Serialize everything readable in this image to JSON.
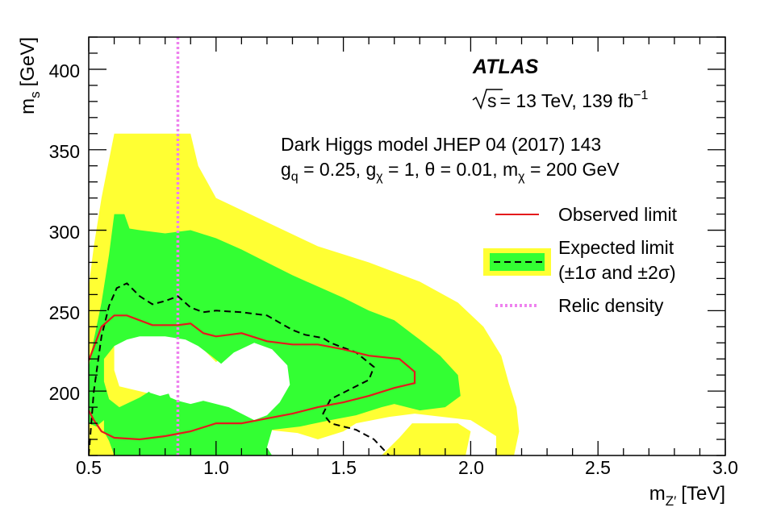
{
  "chart_data": {
    "type": "area",
    "x_axis": {
      "label_main": "m",
      "label_sub": "Z′",
      "label_unit": "[TeV]",
      "range": [
        0.5,
        3.0
      ],
      "ticks": [
        "0.5",
        "1.0",
        "1.5",
        "2.0",
        "2.5",
        "3.0"
      ],
      "tick_values": [
        0.5,
        1.0,
        1.5,
        2.0,
        2.5,
        3.0
      ]
    },
    "y_axis": {
      "label_main": "m",
      "label_sub": "s",
      "label_unit": "[GeV]",
      "range": [
        160,
        420
      ],
      "ticks": [
        "200",
        "250",
        "300",
        "350",
        "400"
      ],
      "tick_values": [
        200,
        250,
        300,
        350,
        400
      ]
    },
    "annotations": {
      "experiment": "ATLAS",
      "energy_sqrt": "s",
      "energy_text": "= 13 TeV, 139 fb",
      "energy_exp": "−1",
      "model_line": "Dark Higgs model JHEP 04 (2017) 143",
      "params_gq": "g",
      "params_gq_sub": "q",
      "params_gq_val": " = 0.25, g",
      "params_gchi_sub": "χ",
      "params_gchi_val": " = 1, θ = 0.01, m",
      "params_mchi_sub": "χ",
      "params_mchi_val": " = 200 GeV"
    },
    "legend": {
      "placement": "right",
      "observed": "Observed limit",
      "expected_line1": "Expected limit",
      "expected_line2": "(±1σ and ±2σ)",
      "relic": "Relic density"
    },
    "colors": {
      "observed": "#e41a1c",
      "band_1sigma": "#33ff33",
      "band_2sigma": "#ffff33",
      "expected": "#000000",
      "relic": "#ee82ee"
    },
    "relic_density_x": 0.85,
    "series": {
      "band_2sigma_outer": [
        [
          0.5,
          160
        ],
        [
          0.5,
          265
        ],
        [
          0.52,
          290
        ],
        [
          0.55,
          320
        ],
        [
          0.6,
          360
        ],
        [
          0.9,
          360
        ],
        [
          0.93,
          340
        ],
        [
          1.0,
          320
        ],
        [
          1.2,
          305
        ],
        [
          1.4,
          290
        ],
        [
          1.6,
          280
        ],
        [
          1.8,
          268
        ],
        [
          1.95,
          255
        ],
        [
          2.05,
          240
        ],
        [
          2.12,
          222
        ],
        [
          2.15,
          205
        ],
        [
          2.18,
          190
        ],
        [
          2.19,
          175
        ],
        [
          2.17,
          160
        ]
      ],
      "band_2sigma_hole_a": [
        [
          0.62,
          203
        ],
        [
          0.6,
          213
        ],
        [
          0.6,
          228
        ],
        [
          0.62,
          234
        ],
        [
          0.7,
          236
        ],
        [
          0.77,
          240
        ],
        [
          0.85,
          238
        ],
        [
          0.95,
          226
        ],
        [
          1.0,
          218
        ],
        [
          1.08,
          229
        ],
        [
          1.15,
          232
        ],
        [
          1.25,
          228
        ],
        [
          1.32,
          218
        ],
        [
          1.33,
          205
        ],
        [
          1.29,
          192
        ],
        [
          1.23,
          184
        ],
        [
          1.15,
          180
        ],
        [
          1.08,
          186
        ],
        [
          1.0,
          186
        ],
        [
          0.9,
          191
        ],
        [
          0.82,
          192
        ],
        [
          0.75,
          198
        ],
        [
          0.7,
          200
        ]
      ],
      "band_2sigma_hole_b": [
        [
          1.2,
          176
        ],
        [
          1.18,
          164
        ],
        [
          1.22,
          160
        ],
        [
          1.65,
          160
        ],
        [
          1.72,
          171
        ],
        [
          1.77,
          180
        ],
        [
          1.95,
          180
        ],
        [
          2.0,
          175
        ],
        [
          1.98,
          160
        ],
        [
          2.1,
          160
        ],
        [
          2.1,
          172
        ],
        [
          2.0,
          182
        ],
        [
          1.78,
          186
        ],
        [
          1.68,
          184
        ],
        [
          1.55,
          180
        ],
        [
          1.5,
          175
        ],
        [
          1.4,
          170
        ],
        [
          1.32,
          174
        ]
      ],
      "band_1sigma_outer": [
        [
          0.5,
          160
        ],
        [
          0.5,
          215
        ],
        [
          0.52,
          232
        ],
        [
          0.55,
          255
        ],
        [
          0.58,
          285
        ],
        [
          0.6,
          310
        ],
        [
          0.64,
          310
        ],
        [
          0.66,
          301
        ],
        [
          0.7,
          300
        ],
        [
          0.8,
          298
        ],
        [
          0.9,
          300
        ],
        [
          1.0,
          295
        ],
        [
          1.1,
          288
        ],
        [
          1.2,
          280
        ],
        [
          1.3,
          272
        ],
        [
          1.4,
          265
        ],
        [
          1.5,
          258
        ],
        [
          1.6,
          250
        ],
        [
          1.7,
          244
        ],
        [
          1.8,
          232
        ],
        [
          1.88,
          222
        ],
        [
          1.95,
          210
        ],
        [
          1.96,
          197
        ],
        [
          1.9,
          190
        ],
        [
          1.8,
          188
        ],
        [
          1.7,
          192
        ],
        [
          1.65,
          190
        ],
        [
          1.55,
          185
        ],
        [
          1.45,
          182
        ],
        [
          1.33,
          178
        ],
        [
          1.22,
          176
        ],
        [
          1.2,
          165
        ],
        [
          1.22,
          160
        ]
      ],
      "band_1sigma_hole_a": [
        [
          0.58,
          195
        ],
        [
          0.56,
          206
        ],
        [
          0.56,
          220
        ],
        [
          0.6,
          228
        ],
        [
          0.65,
          232
        ],
        [
          0.7,
          234
        ],
        [
          0.8,
          234
        ],
        [
          0.88,
          232
        ],
        [
          0.93,
          228
        ],
        [
          0.98,
          222
        ],
        [
          1.02,
          217
        ],
        [
          1.07,
          224
        ],
        [
          1.15,
          230
        ],
        [
          1.22,
          226
        ],
        [
          1.28,
          216
        ],
        [
          1.29,
          204
        ],
        [
          1.25,
          193
        ],
        [
          1.2,
          185
        ],
        [
          1.15,
          182
        ],
        [
          1.1,
          186
        ],
        [
          1.05,
          190
        ],
        [
          1.0,
          192
        ],
        [
          0.95,
          194
        ],
        [
          0.9,
          192
        ],
        [
          0.85,
          194
        ],
        [
          0.82,
          196
        ],
        [
          0.8,
          204
        ],
        [
          0.78,
          208
        ],
        [
          0.74,
          200
        ],
        [
          0.7,
          196
        ],
        [
          0.62,
          190
        ]
      ],
      "band_1sigma_hole_b": [
        [
          0.5,
          160
        ],
        [
          0.5,
          180
        ],
        [
          0.53,
          178
        ],
        [
          0.56,
          182
        ],
        [
          0.56,
          175
        ],
        [
          0.58,
          169
        ],
        [
          0.6,
          160
        ]
      ],
      "white_region_a": [
        [
          0.62,
          209
        ],
        [
          0.62,
          215
        ],
        [
          0.63,
          219
        ],
        [
          0.65,
          219
        ],
        [
          0.68,
          214
        ],
        [
          0.68,
          209
        ],
        [
          0.65,
          205
        ],
        [
          0.63,
          206
        ]
      ],
      "white_region_b": [
        [
          0.72,
          205
        ],
        [
          0.74,
          214
        ],
        [
          0.78,
          219
        ],
        [
          0.84,
          219
        ],
        [
          0.88,
          219
        ],
        [
          0.9,
          214
        ],
        [
          0.89,
          206
        ],
        [
          0.85,
          200
        ],
        [
          0.78,
          197
        ],
        [
          0.74,
          199
        ]
      ],
      "observed": [
        [
          0.5,
          188
        ],
        [
          0.52,
          182
        ],
        [
          0.55,
          175
        ],
        [
          0.6,
          171
        ],
        [
          0.7,
          170
        ],
        [
          0.8,
          172
        ],
        [
          0.9,
          175
        ],
        [
          1.0,
          180
        ],
        [
          1.05,
          180
        ],
        [
          1.1,
          180
        ],
        [
          1.2,
          183
        ],
        [
          1.3,
          186
        ],
        [
          1.4,
          190
        ],
        [
          1.5,
          193
        ],
        [
          1.6,
          197
        ],
        [
          1.7,
          202
        ],
        [
          1.78,
          205
        ],
        [
          1.78,
          212
        ],
        [
          1.72,
          220
        ],
        [
          1.6,
          222
        ],
        [
          1.5,
          226
        ],
        [
          1.4,
          229
        ],
        [
          1.3,
          229
        ],
        [
          1.2,
          231
        ],
        [
          1.1,
          236
        ],
        [
          1.05,
          235
        ],
        [
          1.0,
          234
        ],
        [
          0.95,
          236
        ],
        [
          0.9,
          242
        ],
        [
          0.85,
          241
        ],
        [
          0.8,
          241
        ],
        [
          0.75,
          241
        ],
        [
          0.7,
          244
        ],
        [
          0.65,
          247
        ],
        [
          0.6,
          247
        ],
        [
          0.55,
          240
        ],
        [
          0.5,
          219
        ]
      ],
      "expected": [
        [
          0.5,
          160
        ],
        [
          0.52,
          200
        ],
        [
          0.55,
          234
        ],
        [
          0.58,
          253
        ],
        [
          0.61,
          264
        ],
        [
          0.65,
          267
        ],
        [
          0.7,
          259
        ],
        [
          0.75,
          254
        ],
        [
          0.8,
          256
        ],
        [
          0.85,
          259
        ],
        [
          0.9,
          252
        ],
        [
          0.95,
          249
        ],
        [
          1.0,
          250
        ],
        [
          1.1,
          249
        ],
        [
          1.2,
          247
        ],
        [
          1.3,
          238
        ],
        [
          1.35,
          235
        ],
        [
          1.42,
          233
        ],
        [
          1.45,
          230
        ],
        [
          1.55,
          224
        ],
        [
          1.62,
          215
        ],
        [
          1.6,
          207
        ],
        [
          1.5,
          199
        ],
        [
          1.45,
          195
        ],
        [
          1.42,
          186
        ],
        [
          1.45,
          180
        ],
        [
          1.55,
          176
        ],
        [
          1.62,
          170
        ],
        [
          1.68,
          160
        ]
      ]
    }
  }
}
